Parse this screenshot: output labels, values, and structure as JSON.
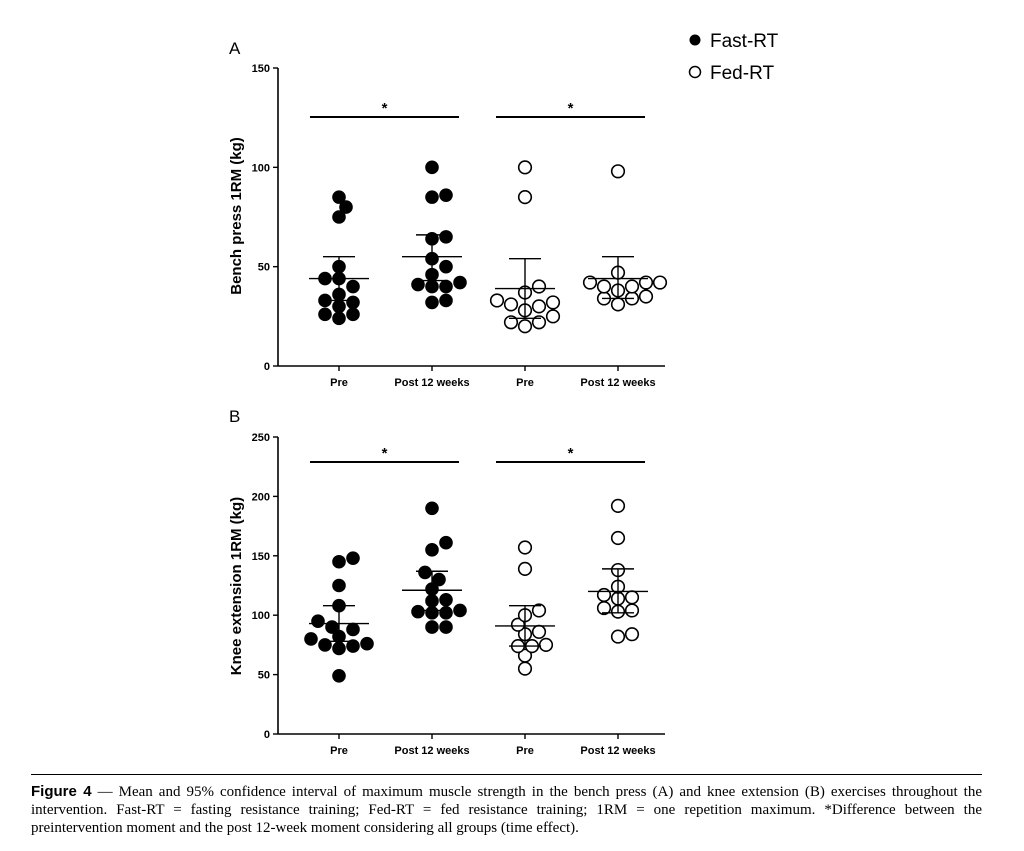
{
  "legend": {
    "items": [
      {
        "label": "Fast-RT",
        "marker": "filled-circle"
      },
      {
        "label": "Fed-RT",
        "marker": "open-circle"
      }
    ]
  },
  "caption": {
    "label": "Figure 4",
    "separator": "—",
    "text": "Mean and 95% confidence interval of maximum muscle strength in the bench press (A) and knee extension (B) exercises throughout the intervention. Fast-RT = fasting resistance training; Fed-RT = fed resistance training; 1RM = one repetition maximum. *Difference between the preintervention moment and the post 12-week moment considering all groups (time effect)."
  },
  "colors": {
    "ink": "#000000",
    "background": "#ffffff"
  },
  "chart_data": [
    {
      "panel": "A",
      "type": "scatter",
      "ylabel": "Bench press 1RM (kg)",
      "xlabel": "",
      "ylim": [
        0,
        150
      ],
      "yticks": [
        0,
        50,
        100,
        150
      ],
      "categories": [
        "Pre",
        "Post 12 weeks",
        "Pre",
        "Post 12 weeks"
      ],
      "series": [
        {
          "group_index": 0,
          "marker": "filled",
          "mean": 44,
          "ci": [
            33,
            55
          ],
          "values": [
            85,
            80,
            75,
            50,
            44,
            44,
            40,
            36,
            33,
            32,
            30,
            26,
            26,
            24
          ]
        },
        {
          "group_index": 1,
          "marker": "filled",
          "mean": 55,
          "ci": [
            43,
            66
          ],
          "values": [
            100,
            86,
            85,
            65,
            64,
            54,
            50,
            46,
            42,
            41,
            40,
            40,
            33,
            32
          ]
        },
        {
          "group_index": 2,
          "marker": "open",
          "mean": 39,
          "ci": [
            24,
            54
          ],
          "values": [
            100,
            85,
            40,
            37,
            33,
            32,
            31,
            30,
            28,
            25,
            22,
            22,
            20
          ]
        },
        {
          "group_index": 3,
          "marker": "open",
          "mean": 44,
          "ci": [
            34,
            55
          ],
          "values": [
            98,
            47,
            42,
            42,
            42,
            40,
            40,
            38,
            35,
            34,
            34,
            31
          ]
        }
      ],
      "significance": [
        {
          "label": "*",
          "from": 0,
          "to": 1
        },
        {
          "label": "*",
          "from": 2,
          "to": 3
        }
      ]
    },
    {
      "panel": "B",
      "type": "scatter",
      "ylabel": "Knee extension 1RM (kg)",
      "xlabel": "",
      "ylim": [
        0,
        250
      ],
      "yticks": [
        0,
        50,
        100,
        150,
        200,
        250
      ],
      "categories": [
        "Pre",
        "Post 12 weeks",
        "Pre",
        "Post 12 weeks"
      ],
      "series": [
        {
          "group_index": 0,
          "marker": "filled",
          "mean": 93,
          "ci": [
            78,
            108
          ],
          "values": [
            148,
            145,
            125,
            108,
            95,
            90,
            88,
            82,
            80,
            76,
            75,
            74,
            72,
            49
          ]
        },
        {
          "group_index": 1,
          "marker": "filled",
          "mean": 121,
          "ci": [
            104,
            137
          ],
          "values": [
            190,
            161,
            155,
            136,
            130,
            122,
            113,
            112,
            104,
            103,
            102,
            102,
            90,
            90
          ]
        },
        {
          "group_index": 2,
          "marker": "open",
          "mean": 91,
          "ci": [
            74,
            108
          ],
          "values": [
            157,
            139,
            104,
            100,
            92,
            86,
            84,
            75,
            74,
            74,
            66,
            55
          ]
        },
        {
          "group_index": 3,
          "marker": "open",
          "mean": 120,
          "ci": [
            102,
            139
          ],
          "values": [
            192,
            165,
            138,
            124,
            117,
            115,
            114,
            106,
            104,
            103,
            84,
            82
          ]
        }
      ],
      "significance": [
        {
          "label": "*",
          "from": 0,
          "to": 1
        },
        {
          "label": "*",
          "from": 2,
          "to": 3
        }
      ]
    }
  ]
}
